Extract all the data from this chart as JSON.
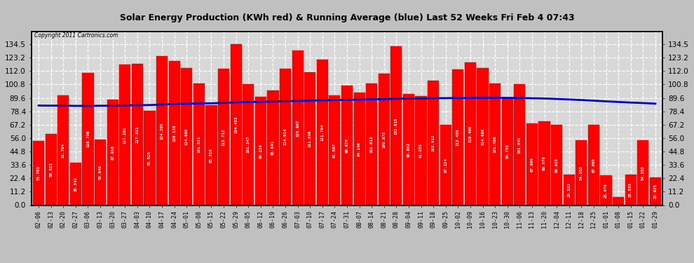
{
  "title": "Solar Energy Production (KWh red) & Running Average (blue) Last 52 Weeks Fri Feb 4 07:43",
  "copyright": "Copyright 2011 Cartronics.com",
  "bar_color": "#ff0000",
  "line_color": "#0000cc",
  "background_color": "#d8d8d8",
  "grid_color": "#ffffff",
  "ylim": [
    0,
    145
  ],
  "yticks": [
    0.0,
    11.2,
    22.4,
    33.6,
    44.8,
    56.0,
    67.2,
    78.4,
    89.6,
    100.8,
    112.0,
    123.2,
    134.5
  ],
  "categories": [
    "02-06",
    "02-13",
    "02-20",
    "02-27",
    "03-06",
    "03-13",
    "03-20",
    "03-27",
    "04-03",
    "04-10",
    "04-17",
    "04-24",
    "05-01",
    "05-08",
    "05-15",
    "05-22",
    "05-29",
    "06-05",
    "06-12",
    "06-19",
    "06-26",
    "07-03",
    "07-10",
    "07-17",
    "07-24",
    "07-31",
    "08-07",
    "08-14",
    "08-21",
    "08-28",
    "09-04",
    "09-11",
    "09-18",
    "09-25",
    "10-02",
    "10-09",
    "10-16",
    "10-23",
    "10-30",
    "11-06",
    "11-13",
    "11-20",
    "12-04",
    "12-11",
    "12-18",
    "12-25",
    "01-01",
    "01-08",
    "01-15",
    "01-22",
    "01-29"
  ],
  "values": [
    53.703,
    59.522,
    91.764,
    35.542,
    110.706,
    55.049,
    87.91,
    117.202,
    117.921,
    78.526,
    124.205,
    120.139,
    114.6,
    101.551,
    83.318,
    113.712,
    134.453,
    101.347,
    90.239,
    95.841,
    114.014,
    128.907,
    111.096,
    121.764,
    91.897,
    99.876,
    94.146,
    101.613,
    109.875,
    132.615,
    93.082,
    91.255,
    103.912,
    67.324,
    113.46,
    119.46,
    114.668,
    101.46,
    89.73,
    101.041,
    67.98,
    69.978,
    66.933,
    25.533,
    54.152,
    67.09,
    25.078,
    7.009,
    25.533,
    54.152,
    22.925
  ],
  "running_avg": [
    83.2,
    83.1,
    83.2,
    82.9,
    83.0,
    83.0,
    83.1,
    83.3,
    83.5,
    83.6,
    84.1,
    84.5,
    84.8,
    85.0,
    85.1,
    85.4,
    85.9,
    86.2,
    86.3,
    86.5,
    86.8,
    87.1,
    87.3,
    87.6,
    87.8,
    88.0,
    88.2,
    88.4,
    88.6,
    88.9,
    89.0,
    89.2,
    89.3,
    89.4,
    89.5,
    89.6,
    89.7,
    89.7,
    89.6,
    89.5,
    89.3,
    89.1,
    88.7,
    88.3,
    87.8,
    87.3,
    86.7,
    86.2,
    85.7,
    85.3,
    84.8
  ]
}
